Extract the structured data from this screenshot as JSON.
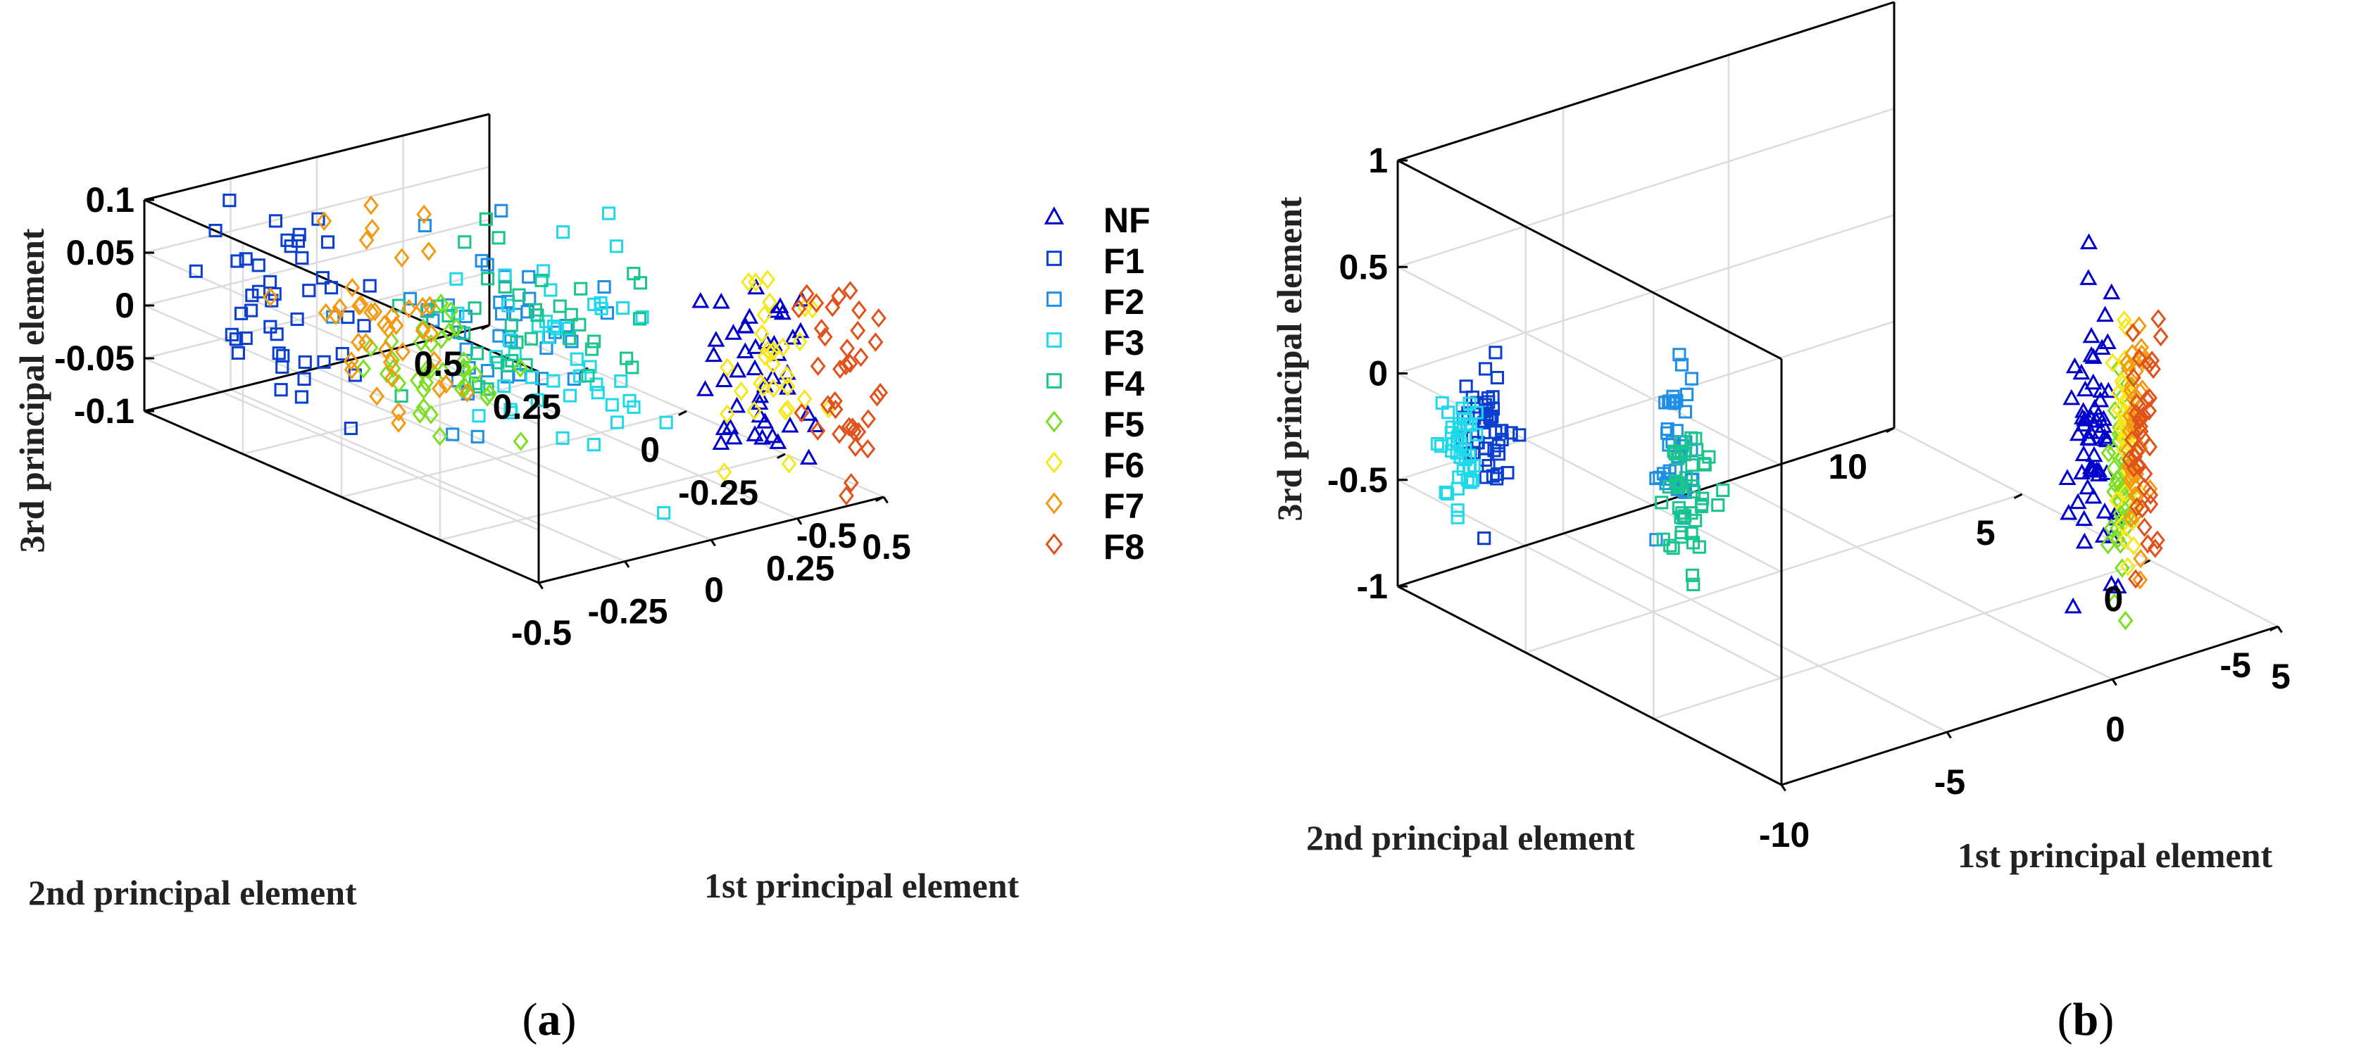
{
  "panels": [
    {
      "label": "a",
      "legend": [
        "NF",
        "F1",
        "F2",
        "F3",
        "F4",
        "F5",
        "F6",
        "F7",
        "F8"
      ],
      "chart_data": {
        "type": "scatter",
        "title": "",
        "xlabel": "1st principal element",
        "ylabel": "2nd principal element",
        "zlabel": "3rd principal element",
        "xlim": [
          -0.5,
          0.5
        ],
        "ylim": [
          -0.5,
          0.5
        ],
        "zlim": [
          -0.1,
          0.1
        ],
        "xticks": [
          "-0.5",
          "-0.25",
          "0",
          "0.25",
          "0.5"
        ],
        "yticks": [
          "-0.5",
          "-0.25",
          "0",
          "0.25",
          "0.5"
        ],
        "zticks": [
          "-0.1",
          "-0.05",
          "0",
          "0.05",
          "0.1"
        ],
        "series": [
          {
            "name": "NF",
            "marker": "triangle",
            "color": "#0000cc",
            "center": [
              0.35,
              -0.3,
              0.0
            ],
            "spread": [
              0.06,
              0.06,
              0.045
            ],
            "count": 45
          },
          {
            "name": "F1",
            "marker": "square",
            "color": "#0a3fcf",
            "center": [
              -0.3,
              0.3,
              0.01
            ],
            "spread": [
              0.08,
              0.08,
              0.05
            ],
            "count": 45
          },
          {
            "name": "F2",
            "marker": "square",
            "color": "#1f8fe6",
            "center": [
              0.0,
              0.05,
              0.02
            ],
            "spread": [
              0.1,
              0.1,
              0.045
            ],
            "count": 40
          },
          {
            "name": "F3",
            "marker": "square",
            "color": "#1fd9ea",
            "center": [
              0.1,
              -0.1,
              0.0
            ],
            "spread": [
              0.12,
              0.12,
              0.05
            ],
            "count": 45
          },
          {
            "name": "F4",
            "marker": "square",
            "color": "#19c48e",
            "center": [
              0.05,
              0.0,
              0.015
            ],
            "spread": [
              0.12,
              0.12,
              0.04
            ],
            "count": 40
          },
          {
            "name": "F5",
            "marker": "diamond",
            "color": "#7ddf24",
            "center": [
              -0.05,
              0.2,
              -0.045
            ],
            "spread": [
              0.08,
              0.08,
              0.035
            ],
            "count": 35
          },
          {
            "name": "F6",
            "marker": "diamond",
            "color": "#f6e81a",
            "center": [
              0.35,
              -0.35,
              0.0
            ],
            "spread": [
              0.05,
              0.05,
              0.05
            ],
            "count": 30
          },
          {
            "name": "F7",
            "marker": "diamond",
            "color": "#f39a12",
            "center": [
              -0.1,
              0.25,
              0.0
            ],
            "spread": [
              0.08,
              0.08,
              0.05
            ],
            "count": 40
          },
          {
            "name": "F8",
            "marker": "diamond",
            "color": "#e0521c",
            "center": [
              0.45,
              -0.42,
              0.01
            ],
            "spread": [
              0.04,
              0.04,
              0.05
            ],
            "count": 35
          }
        ]
      }
    },
    {
      "label": "b",
      "chart_data": {
        "type": "scatter",
        "title": "",
        "xlabel": "1st principal element",
        "ylabel": "2nd principal element",
        "zlabel": "3rd principal element",
        "xlim": [
          -10,
          5
        ],
        "ylim": [
          -5,
          10
        ],
        "zlim": [
          -1,
          1
        ],
        "xticks": [
          "-10",
          "-5",
          "0",
          "5"
        ],
        "yticks": [
          "-5",
          "0",
          "5",
          "10"
        ],
        "zticks": [
          "-1",
          "-0.5",
          "0",
          "0.5",
          "1"
        ],
        "series": [
          {
            "name": "NF",
            "marker": "triangle",
            "color": "#0000cc",
            "center": [
              0.0,
              -4.3,
              0.0
            ],
            "spread": [
              0.15,
              0.5,
              0.35
            ],
            "count": 60
          },
          {
            "name": "F1",
            "marker": "square",
            "color": "#0a3fcf",
            "center": [
              -9.5,
              7.2,
              -0.1
            ],
            "spread": [
              0.15,
              0.45,
              0.18
            ],
            "count": 45
          },
          {
            "name": "F2",
            "marker": "square",
            "color": "#1f8fe6",
            "center": [
              -7.0,
              3.2,
              -0.05
            ],
            "spread": [
              0.15,
              0.45,
              0.18
            ],
            "count": 35
          },
          {
            "name": "F3",
            "marker": "square",
            "color": "#1fd9ea",
            "center": [
              -9.9,
              7.7,
              -0.3
            ],
            "spread": [
              0.15,
              0.35,
              0.15
            ],
            "count": 40
          },
          {
            "name": "F4",
            "marker": "square",
            "color": "#19c48e",
            "center": [
              -6.8,
              2.8,
              -0.3
            ],
            "spread": [
              0.15,
              0.45,
              0.2
            ],
            "count": 45
          },
          {
            "name": "F5",
            "marker": "diamond",
            "color": "#7ddf24",
            "center": [
              1.0,
              -4.0,
              -0.2
            ],
            "spread": [
              0.12,
              0.2,
              0.25
            ],
            "count": 40
          },
          {
            "name": "F6",
            "marker": "diamond",
            "color": "#f6e81a",
            "center": [
              1.2,
              -4.0,
              0.0
            ],
            "spread": [
              0.12,
              0.2,
              0.25
            ],
            "count": 40
          },
          {
            "name": "F7",
            "marker": "diamond",
            "color": "#f39a12",
            "center": [
              1.4,
              -4.1,
              0.0
            ],
            "spread": [
              0.12,
              0.2,
              0.25
            ],
            "count": 40
          },
          {
            "name": "F8",
            "marker": "diamond",
            "color": "#e0521c",
            "center": [
              1.6,
              -4.2,
              0.05
            ],
            "spread": [
              0.12,
              0.2,
              0.25
            ],
            "count": 40
          }
        ]
      }
    }
  ]
}
